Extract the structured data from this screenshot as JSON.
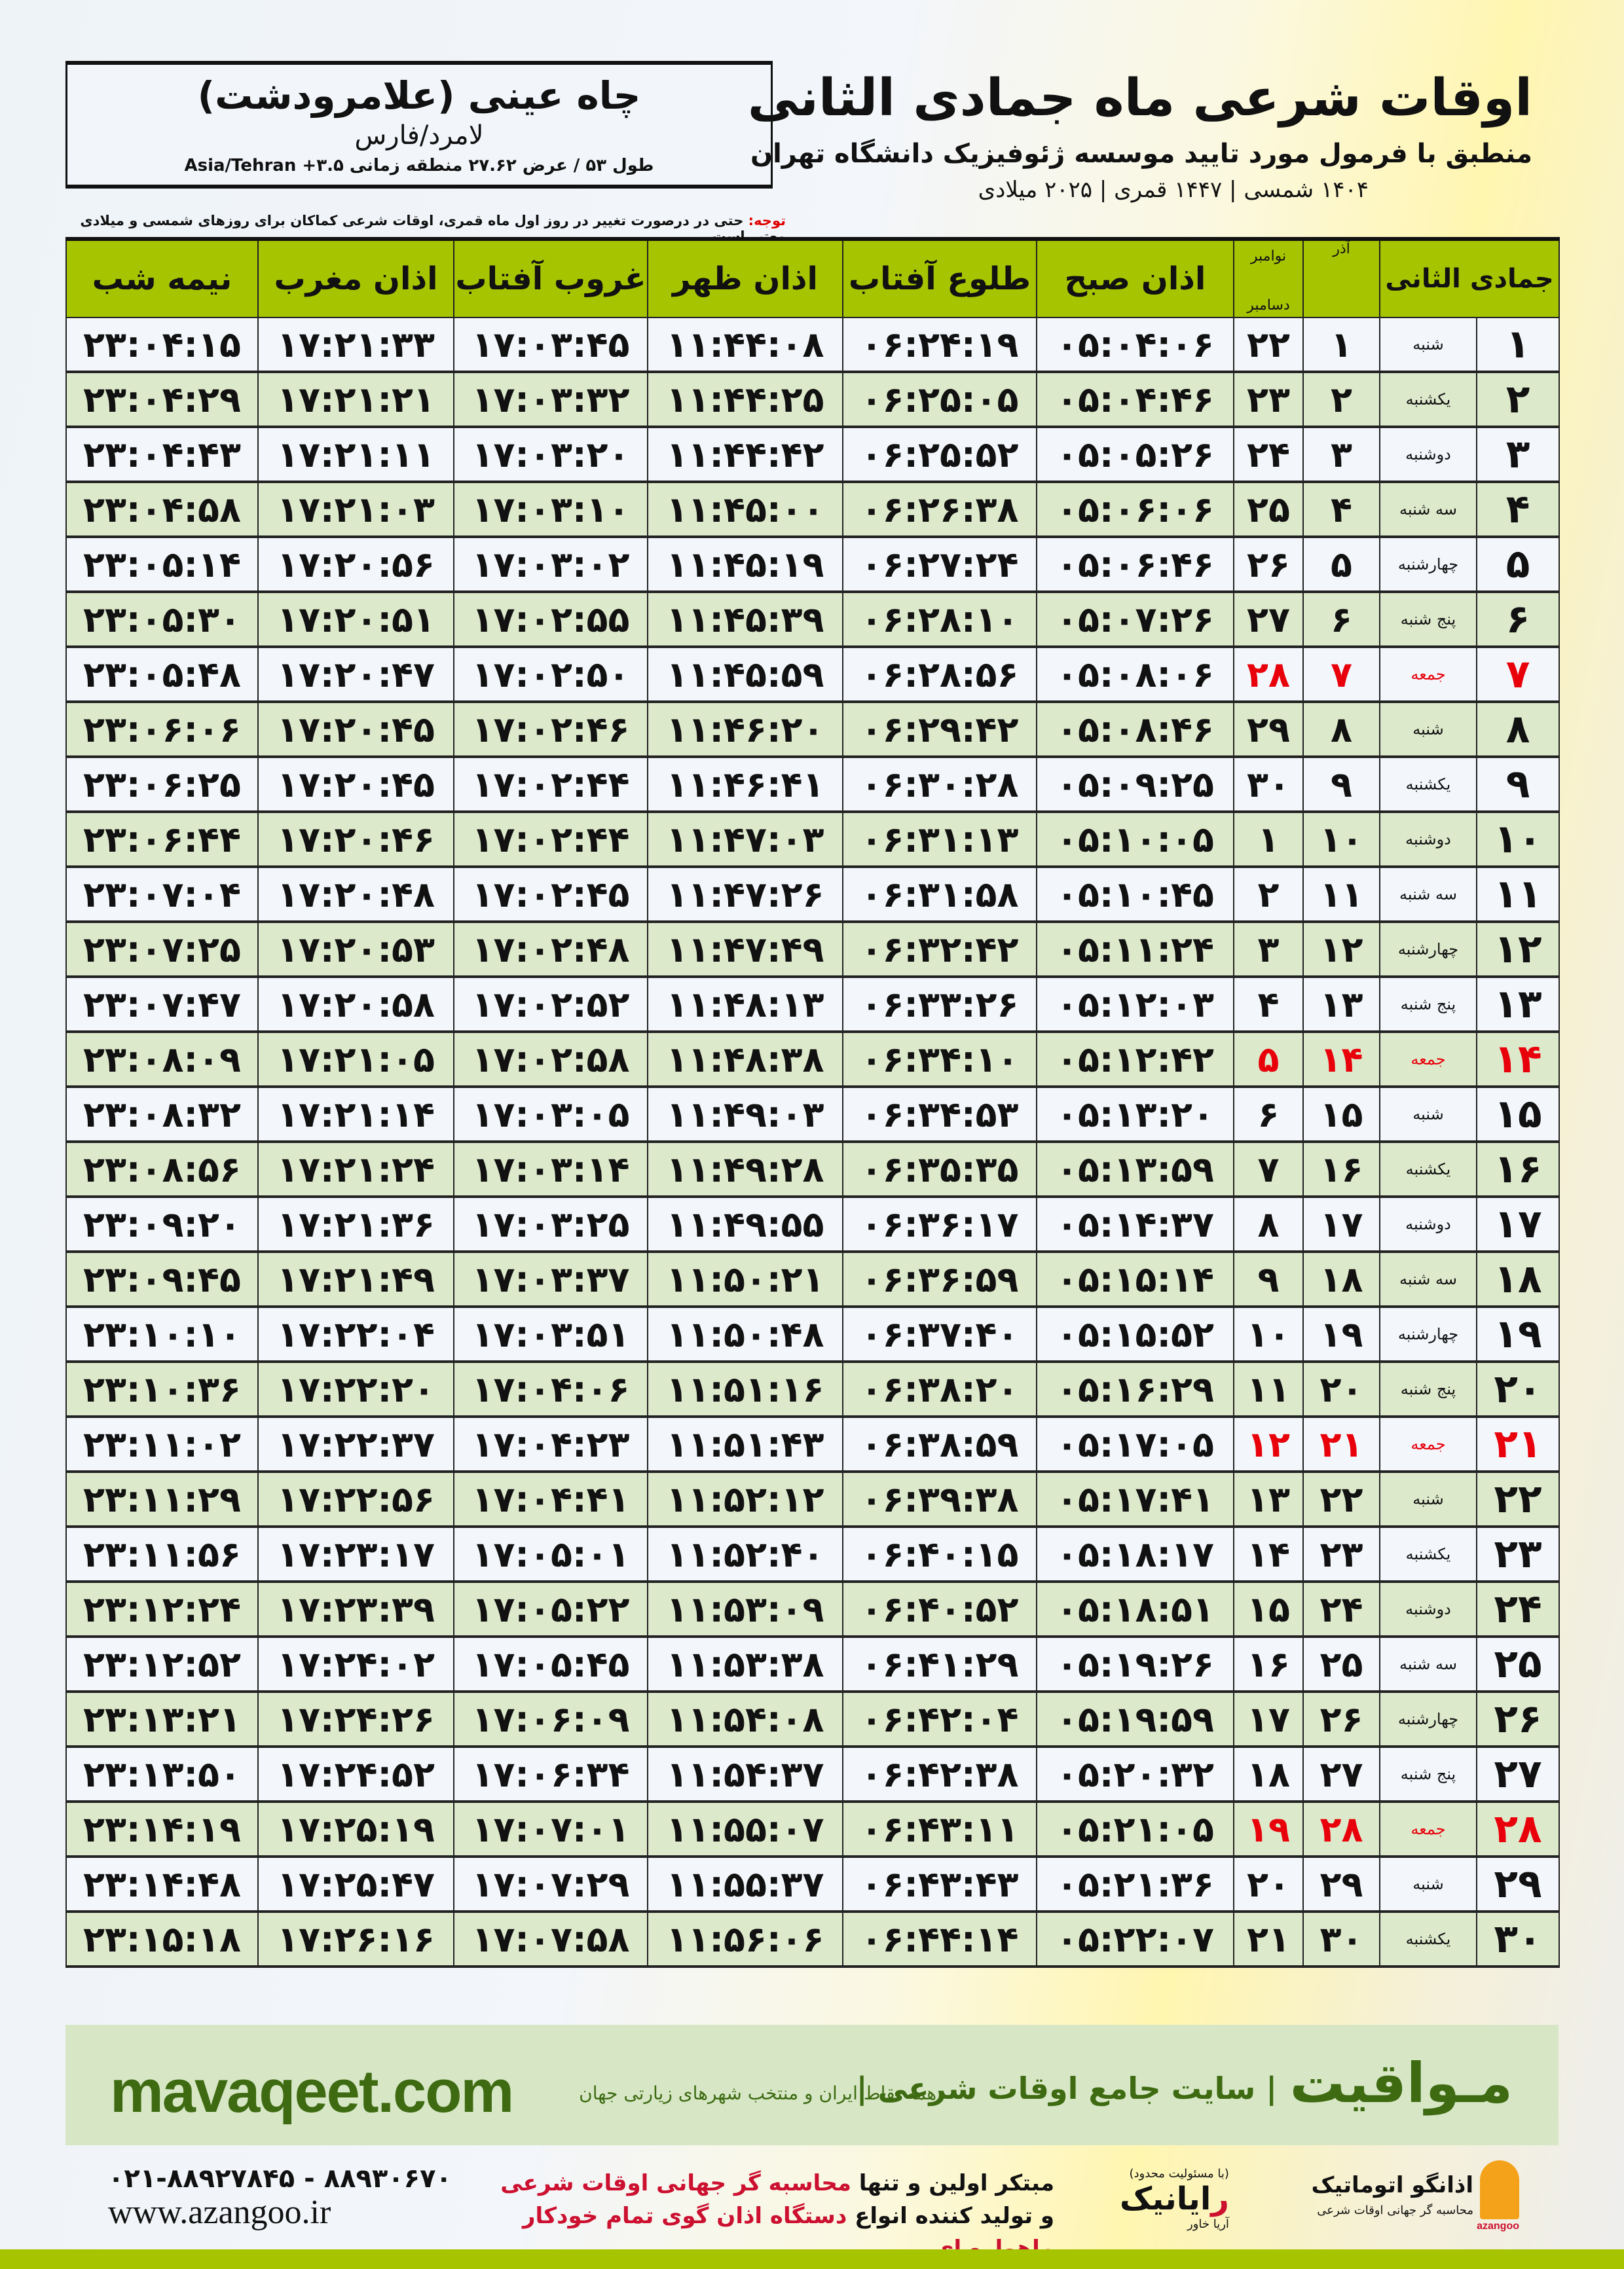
{
  "location": {
    "name": "چاه عینی (علامرودشت)",
    "province": "لامرد/فارس",
    "coords": "طول ۵۳ / عرض ۲۷.۶۲ منطقه زمانی ۳.۵+ Asia/Tehran"
  },
  "header": {
    "title": "اوقات شرعی ماه جمادی الثانی",
    "subtitle": "منطبق با فرمول مورد تایید موسسه ژئوفیزیک دانشگاه تهران",
    "years": "۱۴۰۴ شمسی | ۱۴۴۷ قمری | ۲۰۲۵ میلادی"
  },
  "note": {
    "label": "توجه:",
    "text": " حتی در درصورت تغییر در روز اول ماه قمری، اوقات شرعی کماکان برای روزهای شمسی و میلادی معتبر است."
  },
  "colors": {
    "header_green": "#a6c400",
    "friday_red": "#e8000a",
    "row_green": "#dde9cb",
    "brand_green": "#3e6b12"
  },
  "table": {
    "columns": {
      "day": "جمادی الثانی",
      "azar": "آذر",
      "gregorian_top": "نوامبر",
      "gregorian_bottom": "دسامبر",
      "fajr": "اذان صبح",
      "sunrise": "طلوع آفتاب",
      "dhuhr": "اذان ظهر",
      "sunset": "غروب آفتاب",
      "maghrib": "اذان مغرب",
      "midnight": "نیمه شب"
    },
    "rows": [
      {
        "day": "۱",
        "weekday": "شنبه",
        "azar": "۱",
        "greg": "۲۲",
        "fajr": "۰۵:۰۴:۰۶",
        "sunrise": "۰۶:۲۴:۱۹",
        "dhuhr": "۱۱:۴۴:۰۸",
        "sunset": "۱۷:۰۳:۴۵",
        "maghrib": "۱۷:۲۱:۳۳",
        "midnight": "۲۳:۰۴:۱۵",
        "friday": false
      },
      {
        "day": "۲",
        "weekday": "یکشنبه",
        "azar": "۲",
        "greg": "۲۳",
        "fajr": "۰۵:۰۴:۴۶",
        "sunrise": "۰۶:۲۵:۰۵",
        "dhuhr": "۱۱:۴۴:۲۵",
        "sunset": "۱۷:۰۳:۳۲",
        "maghrib": "۱۷:۲۱:۲۱",
        "midnight": "۲۳:۰۴:۲۹",
        "friday": false
      },
      {
        "day": "۳",
        "weekday": "دوشنبه",
        "azar": "۳",
        "greg": "۲۴",
        "fajr": "۰۵:۰۵:۲۶",
        "sunrise": "۰۶:۲۵:۵۲",
        "dhuhr": "۱۱:۴۴:۴۲",
        "sunset": "۱۷:۰۳:۲۰",
        "maghrib": "۱۷:۲۱:۱۱",
        "midnight": "۲۳:۰۴:۴۳",
        "friday": false
      },
      {
        "day": "۴",
        "weekday": "سه شنبه",
        "azar": "۴",
        "greg": "۲۵",
        "fajr": "۰۵:۰۶:۰۶",
        "sunrise": "۰۶:۲۶:۳۸",
        "dhuhr": "۱۱:۴۵:۰۰",
        "sunset": "۱۷:۰۳:۱۰",
        "maghrib": "۱۷:۲۱:۰۳",
        "midnight": "۲۳:۰۴:۵۸",
        "friday": false
      },
      {
        "day": "۵",
        "weekday": "چهارشنبه",
        "azar": "۵",
        "greg": "۲۶",
        "fajr": "۰۵:۰۶:۴۶",
        "sunrise": "۰۶:۲۷:۲۴",
        "dhuhr": "۱۱:۴۵:۱۹",
        "sunset": "۱۷:۰۳:۰۲",
        "maghrib": "۱۷:۲۰:۵۶",
        "midnight": "۲۳:۰۵:۱۴",
        "friday": false
      },
      {
        "day": "۶",
        "weekday": "پنج شنبه",
        "azar": "۶",
        "greg": "۲۷",
        "fajr": "۰۵:۰۷:۲۶",
        "sunrise": "۰۶:۲۸:۱۰",
        "dhuhr": "۱۱:۴۵:۳۹",
        "sunset": "۱۷:۰۲:۵۵",
        "maghrib": "۱۷:۲۰:۵۱",
        "midnight": "۲۳:۰۵:۳۰",
        "friday": false
      },
      {
        "day": "۷",
        "weekday": "جمعه",
        "azar": "۷",
        "greg": "۲۸",
        "fajr": "۰۵:۰۸:۰۶",
        "sunrise": "۰۶:۲۸:۵۶",
        "dhuhr": "۱۱:۴۵:۵۹",
        "sunset": "۱۷:۰۲:۵۰",
        "maghrib": "۱۷:۲۰:۴۷",
        "midnight": "۲۳:۰۵:۴۸",
        "friday": true
      },
      {
        "day": "۸",
        "weekday": "شنبه",
        "azar": "۸",
        "greg": "۲۹",
        "fajr": "۰۵:۰۸:۴۶",
        "sunrise": "۰۶:۲۹:۴۲",
        "dhuhr": "۱۱:۴۶:۲۰",
        "sunset": "۱۷:۰۲:۴۶",
        "maghrib": "۱۷:۲۰:۴۵",
        "midnight": "۲۳:۰۶:۰۶",
        "friday": false
      },
      {
        "day": "۹",
        "weekday": "یکشنبه",
        "azar": "۹",
        "greg": "۳۰",
        "fajr": "۰۵:۰۹:۲۵",
        "sunrise": "۰۶:۳۰:۲۸",
        "dhuhr": "۱۱:۴۶:۴۱",
        "sunset": "۱۷:۰۲:۴۴",
        "maghrib": "۱۷:۲۰:۴۵",
        "midnight": "۲۳:۰۶:۲۵",
        "friday": false
      },
      {
        "day": "۱۰",
        "weekday": "دوشنبه",
        "azar": "۱۰",
        "greg": "۱",
        "fajr": "۰۵:۱۰:۰۵",
        "sunrise": "۰۶:۳۱:۱۳",
        "dhuhr": "۱۱:۴۷:۰۳",
        "sunset": "۱۷:۰۲:۴۴",
        "maghrib": "۱۷:۲۰:۴۶",
        "midnight": "۲۳:۰۶:۴۴",
        "friday": false
      },
      {
        "day": "۱۱",
        "weekday": "سه شنبه",
        "azar": "۱۱",
        "greg": "۲",
        "fajr": "۰۵:۱۰:۴۵",
        "sunrise": "۰۶:۳۱:۵۸",
        "dhuhr": "۱۱:۴۷:۲۶",
        "sunset": "۱۷:۰۲:۴۵",
        "maghrib": "۱۷:۲۰:۴۸",
        "midnight": "۲۳:۰۷:۰۴",
        "friday": false
      },
      {
        "day": "۱۲",
        "weekday": "چهارشنبه",
        "azar": "۱۲",
        "greg": "۳",
        "fajr": "۰۵:۱۱:۲۴",
        "sunrise": "۰۶:۳۲:۴۲",
        "dhuhr": "۱۱:۴۷:۴۹",
        "sunset": "۱۷:۰۲:۴۸",
        "maghrib": "۱۷:۲۰:۵۳",
        "midnight": "۲۳:۰۷:۲۵",
        "friday": false
      },
      {
        "day": "۱۳",
        "weekday": "پنج شنبه",
        "azar": "۱۳",
        "greg": "۴",
        "fajr": "۰۵:۱۲:۰۳",
        "sunrise": "۰۶:۳۳:۲۶",
        "dhuhr": "۱۱:۴۸:۱۳",
        "sunset": "۱۷:۰۲:۵۲",
        "maghrib": "۱۷:۲۰:۵۸",
        "midnight": "۲۳:۰۷:۴۷",
        "friday": false
      },
      {
        "day": "۱۴",
        "weekday": "جمعه",
        "azar": "۱۴",
        "greg": "۵",
        "fajr": "۰۵:۱۲:۴۲",
        "sunrise": "۰۶:۳۴:۱۰",
        "dhuhr": "۱۱:۴۸:۳۸",
        "sunset": "۱۷:۰۲:۵۸",
        "maghrib": "۱۷:۲۱:۰۵",
        "midnight": "۲۳:۰۸:۰۹",
        "friday": true
      },
      {
        "day": "۱۵",
        "weekday": "شنبه",
        "azar": "۱۵",
        "greg": "۶",
        "fajr": "۰۵:۱۳:۲۰",
        "sunrise": "۰۶:۳۴:۵۳",
        "dhuhr": "۱۱:۴۹:۰۳",
        "sunset": "۱۷:۰۳:۰۵",
        "maghrib": "۱۷:۲۱:۱۴",
        "midnight": "۲۳:۰۸:۳۲",
        "friday": false
      },
      {
        "day": "۱۶",
        "weekday": "یکشنبه",
        "azar": "۱۶",
        "greg": "۷",
        "fajr": "۰۵:۱۳:۵۹",
        "sunrise": "۰۶:۳۵:۳۵",
        "dhuhr": "۱۱:۴۹:۲۸",
        "sunset": "۱۷:۰۳:۱۴",
        "maghrib": "۱۷:۲۱:۲۴",
        "midnight": "۲۳:۰۸:۵۶",
        "friday": false
      },
      {
        "day": "۱۷",
        "weekday": "دوشنبه",
        "azar": "۱۷",
        "greg": "۸",
        "fajr": "۰۵:۱۴:۳۷",
        "sunrise": "۰۶:۳۶:۱۷",
        "dhuhr": "۱۱:۴۹:۵۵",
        "sunset": "۱۷:۰۳:۲۵",
        "maghrib": "۱۷:۲۱:۳۶",
        "midnight": "۲۳:۰۹:۲۰",
        "friday": false
      },
      {
        "day": "۱۸",
        "weekday": "سه شنبه",
        "azar": "۱۸",
        "greg": "۹",
        "fajr": "۰۵:۱۵:۱۴",
        "sunrise": "۰۶:۳۶:۵۹",
        "dhuhr": "۱۱:۵۰:۲۱",
        "sunset": "۱۷:۰۳:۳۷",
        "maghrib": "۱۷:۲۱:۴۹",
        "midnight": "۲۳:۰۹:۴۵",
        "friday": false
      },
      {
        "day": "۱۹",
        "weekday": "چهارشنبه",
        "azar": "۱۹",
        "greg": "۱۰",
        "fajr": "۰۵:۱۵:۵۲",
        "sunrise": "۰۶:۳۷:۴۰",
        "dhuhr": "۱۱:۵۰:۴۸",
        "sunset": "۱۷:۰۳:۵۱",
        "maghrib": "۱۷:۲۲:۰۴",
        "midnight": "۲۳:۱۰:۱۰",
        "friday": false
      },
      {
        "day": "۲۰",
        "weekday": "پنج شنبه",
        "azar": "۲۰",
        "greg": "۱۱",
        "fajr": "۰۵:۱۶:۲۹",
        "sunrise": "۰۶:۳۸:۲۰",
        "dhuhr": "۱۱:۵۱:۱۶",
        "sunset": "۱۷:۰۴:۰۶",
        "maghrib": "۱۷:۲۲:۲۰",
        "midnight": "۲۳:۱۰:۳۶",
        "friday": false
      },
      {
        "day": "۲۱",
        "weekday": "جمعه",
        "azar": "۲۱",
        "greg": "۱۲",
        "fajr": "۰۵:۱۷:۰۵",
        "sunrise": "۰۶:۳۸:۵۹",
        "dhuhr": "۱۱:۵۱:۴۳",
        "sunset": "۱۷:۰۴:۲۳",
        "maghrib": "۱۷:۲۲:۳۷",
        "midnight": "۲۳:۱۱:۰۲",
        "friday": true
      },
      {
        "day": "۲۲",
        "weekday": "شنبه",
        "azar": "۲۲",
        "greg": "۱۳",
        "fajr": "۰۵:۱۷:۴۱",
        "sunrise": "۰۶:۳۹:۳۸",
        "dhuhr": "۱۱:۵۲:۱۲",
        "sunset": "۱۷:۰۴:۴۱",
        "maghrib": "۱۷:۲۲:۵۶",
        "midnight": "۲۳:۱۱:۲۹",
        "friday": false
      },
      {
        "day": "۲۳",
        "weekday": "یکشنبه",
        "azar": "۲۳",
        "greg": "۱۴",
        "fajr": "۰۵:۱۸:۱۷",
        "sunrise": "۰۶:۴۰:۱۵",
        "dhuhr": "۱۱:۵۲:۴۰",
        "sunset": "۱۷:۰۵:۰۱",
        "maghrib": "۱۷:۲۳:۱۷",
        "midnight": "۲۳:۱۱:۵۶",
        "friday": false
      },
      {
        "day": "۲۴",
        "weekday": "دوشنبه",
        "azar": "۲۴",
        "greg": "۱۵",
        "fajr": "۰۵:۱۸:۵۱",
        "sunrise": "۰۶:۴۰:۵۲",
        "dhuhr": "۱۱:۵۳:۰۹",
        "sunset": "۱۷:۰۵:۲۲",
        "maghrib": "۱۷:۲۳:۳۹",
        "midnight": "۲۳:۱۲:۲۴",
        "friday": false
      },
      {
        "day": "۲۵",
        "weekday": "سه شنبه",
        "azar": "۲۵",
        "greg": "۱۶",
        "fajr": "۰۵:۱۹:۲۶",
        "sunrise": "۰۶:۴۱:۲۹",
        "dhuhr": "۱۱:۵۳:۳۸",
        "sunset": "۱۷:۰۵:۴۵",
        "maghrib": "۱۷:۲۴:۰۲",
        "midnight": "۲۳:۱۲:۵۲",
        "friday": false
      },
      {
        "day": "۲۶",
        "weekday": "چهارشنبه",
        "azar": "۲۶",
        "greg": "۱۷",
        "fajr": "۰۵:۱۹:۵۹",
        "sunrise": "۰۶:۴۲:۰۴",
        "dhuhr": "۱۱:۵۴:۰۸",
        "sunset": "۱۷:۰۶:۰۹",
        "maghrib": "۱۷:۲۴:۲۶",
        "midnight": "۲۳:۱۳:۲۱",
        "friday": false
      },
      {
        "day": "۲۷",
        "weekday": "پنج شنبه",
        "azar": "۲۷",
        "greg": "۱۸",
        "fajr": "۰۵:۲۰:۳۲",
        "sunrise": "۰۶:۴۲:۳۸",
        "dhuhr": "۱۱:۵۴:۳۷",
        "sunset": "۱۷:۰۶:۳۴",
        "maghrib": "۱۷:۲۴:۵۲",
        "midnight": "۲۳:۱۳:۵۰",
        "friday": false
      },
      {
        "day": "۲۸",
        "weekday": "جمعه",
        "azar": "۲۸",
        "greg": "۱۹",
        "fajr": "۰۵:۲۱:۰۵",
        "sunrise": "۰۶:۴۳:۱۱",
        "dhuhr": "۱۱:۵۵:۰۷",
        "sunset": "۱۷:۰۷:۰۱",
        "maghrib": "۱۷:۲۵:۱۹",
        "midnight": "۲۳:۱۴:۱۹",
        "friday": true
      },
      {
        "day": "۲۹",
        "weekday": "شنبه",
        "azar": "۲۹",
        "greg": "۲۰",
        "fajr": "۰۵:۲۱:۳۶",
        "sunrise": "۰۶:۴۳:۴۳",
        "dhuhr": "۱۱:۵۵:۳۷",
        "sunset": "۱۷:۰۷:۲۹",
        "maghrib": "۱۷:۲۵:۴۷",
        "midnight": "۲۳:۱۴:۴۸",
        "friday": false
      },
      {
        "day": "۳۰",
        "weekday": "یکشنبه",
        "azar": "۳۰",
        "greg": "۲۱",
        "fajr": "۰۵:۲۲:۰۷",
        "sunrise": "۰۶:۴۴:۱۴",
        "dhuhr": "۱۱:۵۶:۰۶",
        "sunset": "۱۷:۰۷:۵۸",
        "maghrib": "۱۷:۲۶:۱۶",
        "midnight": "۲۳:۱۵:۱۸",
        "friday": false
      }
    ]
  },
  "banner": {
    "site": "mavaqeet.com",
    "brand": "مـواقیت",
    "tagline": "| سایت جامع اوقات شرعی |",
    "tagline_small": "همه نقاط ایران و منتخب شهرهای زیارتی جهان"
  },
  "footer": {
    "phone": "۰۲۱-۸۸۹۲۷۸۴۵ - ۸۸۹۳۰۶۷۰",
    "website": "www.azangoo.ir",
    "slogan_line1_a": "مبتکر اولین و تنها ",
    "slogan_line1_b": "محاسبه گر جهانی اوقات شرعی",
    "slogan_line2_a": "و تولید کننده انواع ",
    "slogan_line2_b": "دستگاه اذان گوی تمام خودکار ماهواره ای",
    "rayanik_small": "(با مسئولیت محدود)",
    "rayanik_sub": "آریا خاور",
    "rayanik_r": "ر",
    "rayanik_rest": "ایانیک",
    "azangoo_name": "اذانگو اتوماتیک",
    "azangoo_sub": "محاسبه گر جهانی اوقات شرعی",
    "azangoo_latin": "azangoo"
  }
}
